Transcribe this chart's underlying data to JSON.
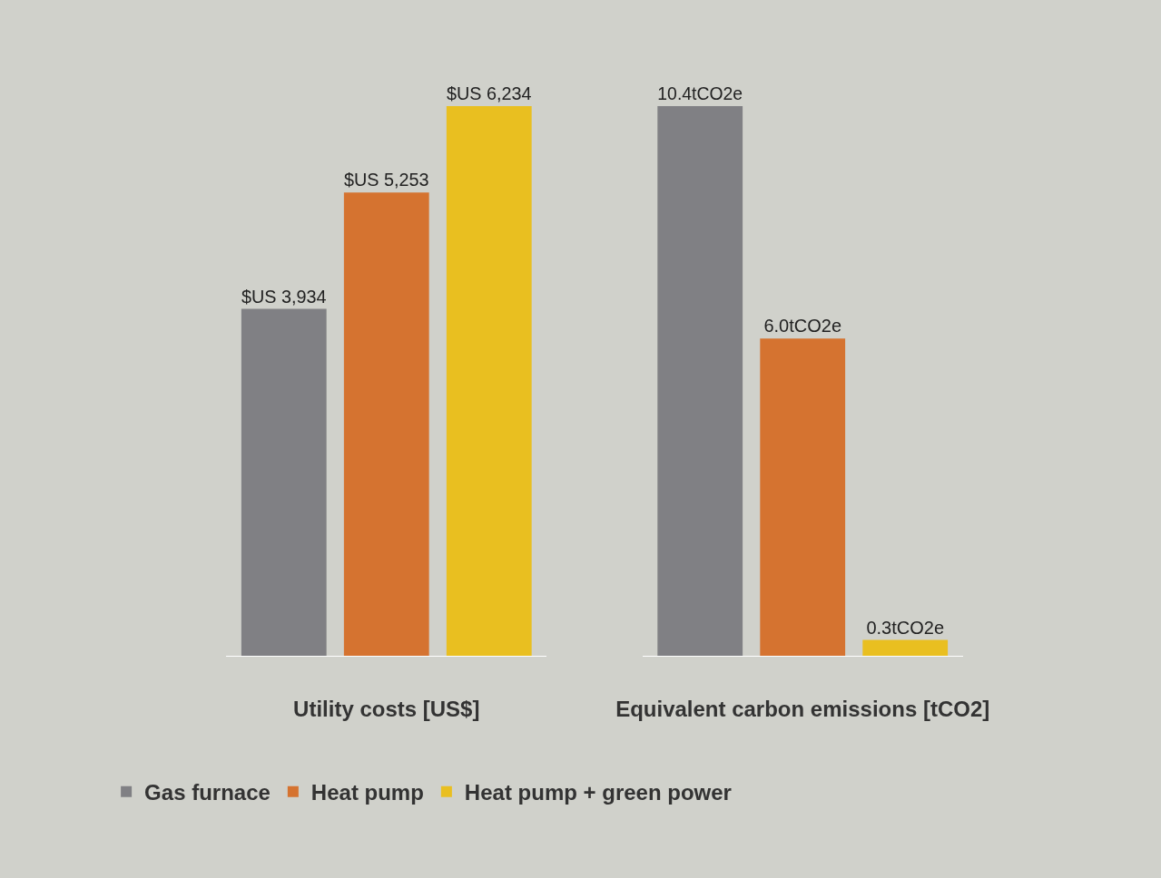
{
  "chart_data": [
    {
      "type": "bar",
      "xlabel": "Utility costs [US$]",
      "categories": [
        null
      ],
      "tick_labels": false,
      "legend": "bottom",
      "series": [
        {
          "name": "Gas furnace",
          "color": "#808084",
          "values": [
            3934
          ],
          "value_labels": [
            "$US 3,934"
          ]
        },
        {
          "name": "Heat pump",
          "color": "#d57330",
          "values": [
            5253
          ],
          "value_labels": [
            "$US 5,253"
          ]
        },
        {
          "name": "Heat pump + green power",
          "color": "#e9bf20",
          "values": [
            6234
          ],
          "value_labels": [
            "$US 6,234"
          ]
        }
      ]
    },
    {
      "type": "bar",
      "xlabel": "Equivalent carbon emissions [tCO2]",
      "categories": [
        null
      ],
      "tick_labels": false,
      "legend": "bottom",
      "series": [
        {
          "name": "Gas furnace",
          "color": "#808084",
          "values": [
            10.4
          ],
          "value_labels": [
            "10.4tCO2e"
          ]
        },
        {
          "name": "Heat pump",
          "color": "#d57330",
          "values": [
            6.0
          ],
          "value_labels": [
            "6.0tCO2e"
          ]
        },
        {
          "name": "Heat pump + green power",
          "color": "#e9bf20",
          "values": [
            0.3
          ],
          "value_labels": [
            "0.3tCO2e"
          ]
        }
      ]
    }
  ]
}
